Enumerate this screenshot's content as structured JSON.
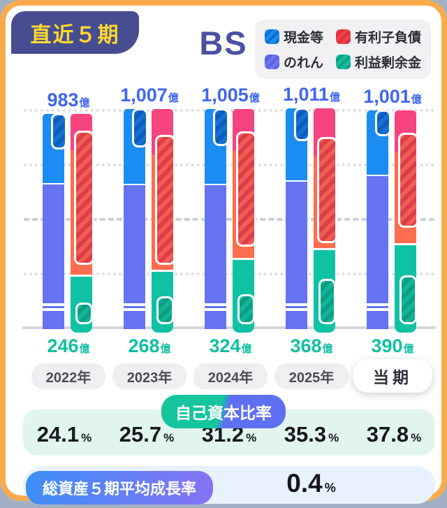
{
  "header": {
    "badge": "直近５期",
    "title": "BS",
    "legend": [
      {
        "name": "現金等",
        "color": "#1b8cf0"
      },
      {
        "name": "有利子負債",
        "color": "#ef4149"
      },
      {
        "name": "のれん",
        "color": "#6b75f3"
      },
      {
        "name": "利益剰余金",
        "color": "#12bd9d"
      }
    ]
  },
  "chart_data": {
    "type": "bar",
    "subtype": "paired-stacked-balance-sheet",
    "title": "BS",
    "unit": "億円",
    "categories": [
      "2022年",
      "2023年",
      "2024年",
      "2025年",
      "当期"
    ],
    "current_period_label": "当期",
    "total_assets": [
      983,
      1007,
      1005,
      1011,
      1001
    ],
    "total_labels": [
      "983",
      "1,007",
      "1,005",
      "1,011",
      "1,001"
    ],
    "value_suffix": "億",
    "retained_earnings": [
      246,
      268,
      324,
      368,
      390
    ],
    "retained_labels": [
      "246",
      "268",
      "324",
      "368",
      "390"
    ],
    "left_bar_estimated": {
      "blue_top_assets": [
        315,
        345,
        343,
        330,
        295
      ],
      "indigo_other_assets": [
        668,
        662,
        662,
        681,
        706
      ]
    },
    "right_bar_estimated": {
      "pink_liabilities": [
        165,
        208,
        192,
        224,
        192
      ],
      "orange_liabilities": [
        572,
        531,
        489,
        419,
        419
      ],
      "teal_retained": [
        246,
        268,
        324,
        368,
        390
      ]
    },
    "hatch_overlays_estimated": {
      "cash": [
        165,
        180,
        173,
        154,
        122
      ],
      "interest_bearing_debt": [
        615,
        596,
        529,
        487,
        436
      ],
      "retained_hatch": [
        100,
        128,
        138,
        208,
        224
      ]
    },
    "gridlines_oku": [
      250,
      500,
      750,
      1000
    ],
    "axis_min": 0,
    "axis_max": 1000,
    "legend_entries": [
      "現金等",
      "有利子負債",
      "のれん",
      "利益剰余金"
    ]
  },
  "equity_section": {
    "label": "自己資本比率",
    "values": [
      "24.1",
      "25.7",
      "31.2",
      "35.3",
      "37.8"
    ],
    "unit": "%"
  },
  "growth_section": {
    "label": "総資産５期平均成長率",
    "value": "0.4",
    "unit": "%"
  },
  "colors": {
    "card_border": "#f9ab4c",
    "badge_bg": "#474d91",
    "badge_text": "#ffd72e",
    "title_text": "#4a51a3",
    "bar_blue": "#1b8df2",
    "bar_indigo": "#6673f2",
    "bar_pink": "#f6447f",
    "bar_orange": "#fd6d4e",
    "bar_teal": "#0fc2a4",
    "hatch_blue": "#0e5ebc",
    "hatch_red": "#de3d47",
    "hatch_green": "#0c9e83",
    "total_label_text": "#3f66f0",
    "retained_label_text": "#10c0a2",
    "equity_band_bg": "#e2f4ee",
    "growth_band_bg": "#e8f2fd"
  }
}
